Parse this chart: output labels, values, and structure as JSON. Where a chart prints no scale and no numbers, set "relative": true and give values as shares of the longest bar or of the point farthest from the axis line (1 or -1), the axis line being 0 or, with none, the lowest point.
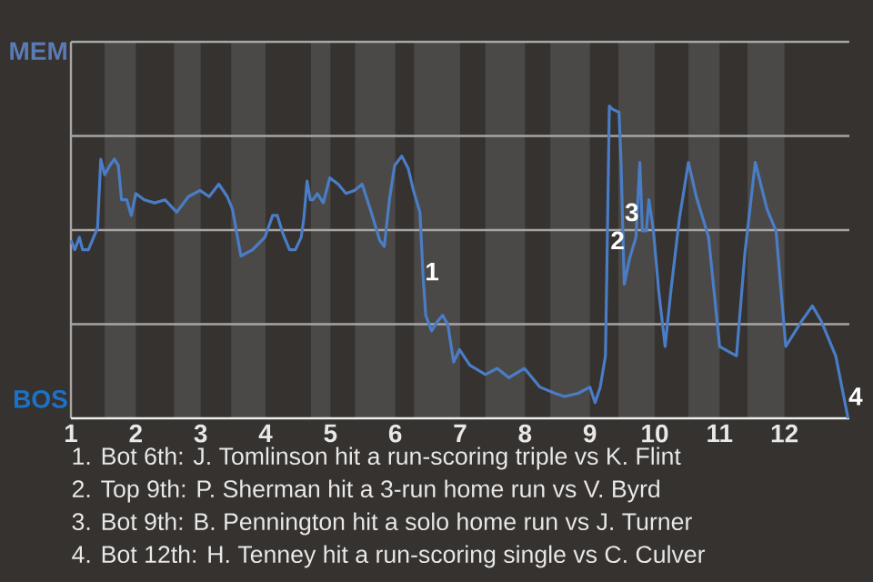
{
  "chart_data": {
    "type": "line",
    "relative": true,
    "x": [
      1,
      1.06,
      1.13,
      1.18,
      1.27,
      1.35,
      1.41,
      1.46,
      1.52,
      1.6,
      1.67,
      1.73,
      1.78,
      1.86,
      1.93,
      2,
      2.13,
      2.29,
      2.45,
      2.63,
      2.81,
      2.99,
      3.13,
      3.28,
      3.41,
      3.49,
      3.62,
      3.8,
      3.99,
      4.11,
      4.18,
      4.27,
      4.37,
      4.46,
      4.55,
      4.59,
      4.64,
      4.69,
      4.73,
      4.8,
      4.89,
      4.99,
      5.12,
      5.24,
      5.37,
      5.49,
      5.63,
      5.76,
      5.83,
      5.91,
      5.99,
      6.1,
      6.2,
      6.28,
      6.38,
      6.43,
      6.47,
      6.56,
      6.65,
      6.73,
      6.81,
      6.9,
      6.99,
      7.15,
      7.39,
      7.57,
      7.75,
      7.99,
      8.23,
      8.46,
      8.61,
      8.82,
      9,
      9.08,
      9.16,
      9.24,
      9.26,
      9.3,
      9.35,
      9.45,
      9.48,
      9.53,
      9.61,
      9.71,
      9.77,
      9.81,
      9.87,
      9.91,
      9.98,
      10.06,
      10.16,
      10.25,
      10.38,
      10.52,
      10.64,
      10.83,
      11,
      11.26,
      11.39,
      11.55,
      11.73,
      11.87,
      12.02,
      12.26,
      12.43,
      12.57,
      12.79,
      12.98
    ],
    "series": [
      {
        "color": "#4a7dc6",
        "values": [
          0.57,
          0.54,
          0.58,
          0.54,
          0.54,
          0.58,
          0.61,
          0.83,
          0.78,
          0.81,
          0.83,
          0.81,
          0.7,
          0.7,
          0.65,
          0.72,
          0.7,
          0.69,
          0.7,
          0.66,
          0.71,
          0.73,
          0.71,
          0.75,
          0.71,
          0.67,
          0.52,
          0.54,
          0.58,
          0.65,
          0.65,
          0.59,
          0.54,
          0.54,
          0.58,
          0.64,
          0.76,
          0.7,
          0.7,
          0.72,
          0.69,
          0.77,
          0.75,
          0.72,
          0.73,
          0.75,
          0.66,
          0.57,
          0.55,
          0.7,
          0.81,
          0.84,
          0.8,
          0.73,
          0.66,
          0.45,
          0.33,
          0.28,
          0.31,
          0.33,
          0.3,
          0.18,
          0.22,
          0.17,
          0.14,
          0.16,
          0.13,
          0.16,
          0.1,
          0.08,
          0.07,
          0.08,
          0.1,
          0.05,
          0.1,
          0.2,
          0.45,
          1,
          0.99,
          0.98,
          0.82,
          0.43,
          0.51,
          0.58,
          0.82,
          0.6,
          0.6,
          0.7,
          0.6,
          0.41,
          0.23,
          0.41,
          0.64,
          0.82,
          0.71,
          0.58,
          0.23,
          0.2,
          0.53,
          0.82,
          0.67,
          0.6,
          0.23,
          0.31,
          0.36,
          0.31,
          0.2,
          0
        ]
      }
    ],
    "xlim": [
      1,
      13
    ],
    "xticks": [
      1,
      2,
      3,
      4,
      5,
      6,
      7,
      8,
      9,
      10,
      11,
      12
    ],
    "grid": "y",
    "marker": "none",
    "line_style": "solid",
    "bands": [
      {
        "axis": "x",
        "from": 1.52,
        "to": 2,
        "color": "#4b4947"
      },
      {
        "axis": "x",
        "from": 2.59,
        "to": 3,
        "color": "#4b4947"
      },
      {
        "axis": "x",
        "from": 3.47,
        "to": 4,
        "color": "#4b4947"
      },
      {
        "axis": "x",
        "from": 4.7,
        "to": 5,
        "color": "#4b4947"
      },
      {
        "axis": "x",
        "from": 5.38,
        "to": 6,
        "color": "#4b4947"
      },
      {
        "axis": "x",
        "from": 6.29,
        "to": 7,
        "color": "#4b4947"
      },
      {
        "axis": "x",
        "from": 7.39,
        "to": 8,
        "color": "#4b4947"
      },
      {
        "axis": "x",
        "from": 8.39,
        "to": 9,
        "color": "#4b4947"
      },
      {
        "axis": "x",
        "from": 9.44,
        "to": 10,
        "color": "#4b4947"
      },
      {
        "axis": "x",
        "from": 10.52,
        "to": 11,
        "color": "#4b4947"
      },
      {
        "axis": "x",
        "from": 11.43,
        "to": 12,
        "color": "#4b4947"
      }
    ],
    "annotations": [
      "MEM",
      "BOS",
      {
        "text": "1",
        "x": 6.45,
        "y": 0.47
      },
      {
        "text": "2",
        "x": 9.31,
        "y": 0.57
      },
      {
        "text": "3",
        "x": 9.53,
        "y": 0.66
      },
      {
        "text": "4",
        "x": 12.98,
        "y": 0.07
      },
      "1. Bot 6th: J. Tomlinson hit a run-scoring triple vs K. Flint",
      "2. Top 9th: P. Sherman hit a 3-run home run vs V. Byrd",
      "3. Bot 9th: B. Pennington hit a solo home run vs J. Turner",
      "4. Bot 12th: H. Tenney hit a run-scoring single vs C. Culver"
    ]
  }
}
